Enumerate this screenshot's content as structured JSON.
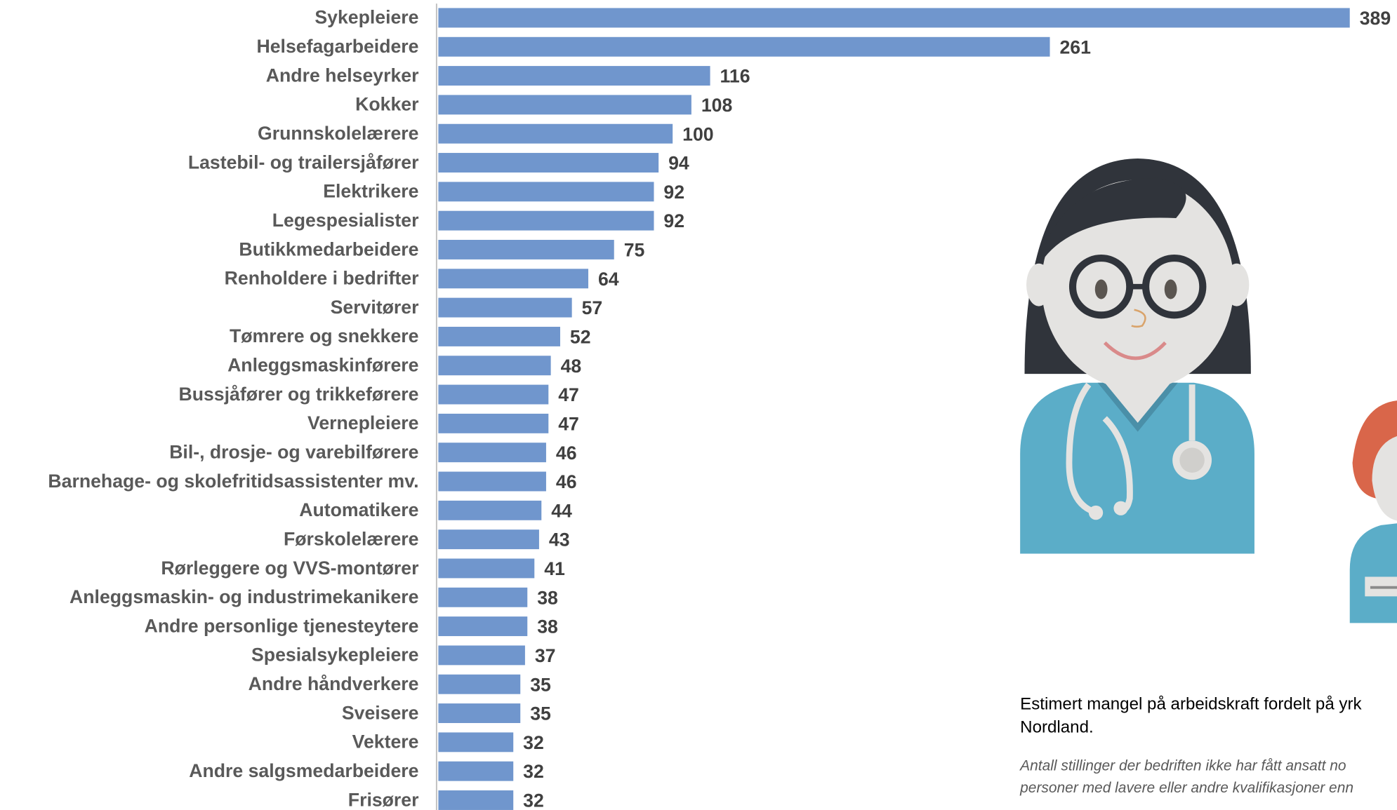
{
  "chart_data": {
    "type": "bar",
    "orientation": "horizontal",
    "color": "#7096cd",
    "categories": [
      "Sykepleiere",
      "Helsefagarbeidere",
      "Andre helseyrker",
      "Kokker",
      "Grunnskolelærere",
      "Lastebil- og trailersjåfører",
      "Elektrikere",
      "Legespesialister",
      "Butikkmedarbeidere",
      "Renholdere i bedrifter",
      "Servitører",
      "Tømrere og snekkere",
      "Anleggsmaskinførere",
      "Bussjåfører og trikkeførere",
      "Vernepleiere",
      "Bil-, drosje- og varebilførere",
      "Barnehage- og skolefritidsassistenter mv.",
      "Automatikere",
      "Førskolelærere",
      "Rørleggere og VVS-montører",
      "Anleggsmaskin- og industrimekanikere",
      "Andre personlige tjenesteytere",
      "Spesialsykepleiere",
      "Andre håndverkere",
      "Sveisere",
      "Vektere",
      "Andre salgsmedarbeidere",
      "Frisører"
    ],
    "values": [
      389,
      261,
      116,
      108,
      100,
      94,
      92,
      92,
      75,
      64,
      57,
      52,
      48,
      47,
      47,
      46,
      46,
      44,
      43,
      41,
      38,
      38,
      37,
      35,
      35,
      32,
      32,
      32
    ],
    "caption": [
      "Estimert mangel på arbeidskraft fordelt på yrk",
      "Nordland."
    ],
    "note": [
      "Antall stillinger der bedriften ikke har fått ansatt no",
      "personer med lavere eller andre kvalifikasjoner enn"
    ]
  }
}
